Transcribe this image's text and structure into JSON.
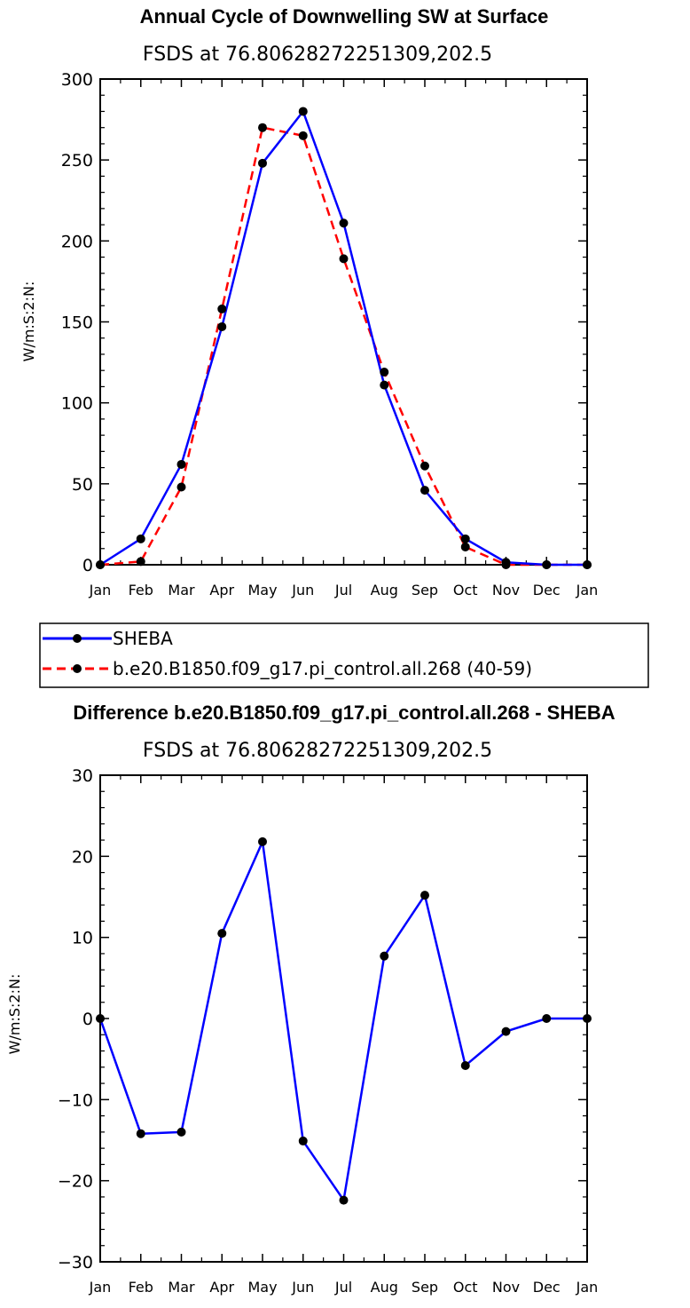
{
  "chart_data": [
    {
      "type": "line",
      "title": "Annual Cycle of Downwelling SW at Surface",
      "subtitle": "FSDS at 76.80628272251309,202.5",
      "ylabel": "W/m:S:2:N:",
      "xlabel": "",
      "categories": [
        "Jan",
        "Feb",
        "Mar",
        "Apr",
        "May",
        "Jun",
        "Jul",
        "Aug",
        "Sep",
        "Oct",
        "Nov",
        "Dec",
        "Jan"
      ],
      "ylim": [
        0,
        300
      ],
      "yticks": [
        0,
        50,
        100,
        150,
        200,
        250,
        300
      ],
      "grid": false,
      "legend_position": "bottom-left",
      "series": [
        {
          "name": "SHEBA",
          "color": "#0000ff",
          "dash": "solid",
          "values": [
            0,
            16,
            62,
            147,
            248,
            280,
            211,
            111,
            46,
            16,
            1.5,
            0,
            0
          ]
        },
        {
          "name": "b.e20.B1850.f09_g17.pi_control.all.268 (40-59)",
          "color": "#ff0000",
          "dash": "dashed",
          "values": [
            0,
            2,
            48,
            158,
            270,
            265,
            189,
            119,
            61,
            11,
            0,
            0,
            0
          ]
        }
      ]
    },
    {
      "type": "line",
      "title": "Difference b.e20.B1850.f09_g17.pi_control.all.268 - SHEBA",
      "subtitle": "FSDS at 76.80628272251309,202.5",
      "ylabel": "W/m:S:2:N:",
      "xlabel": "",
      "categories": [
        "Jan",
        "Feb",
        "Mar",
        "Apr",
        "May",
        "Jun",
        "Jul",
        "Aug",
        "Sep",
        "Oct",
        "Nov",
        "Dec",
        "Jan"
      ],
      "ylim": [
        -30,
        30
      ],
      "yticks": [
        -30,
        -20,
        -10,
        0,
        10,
        20,
        30
      ],
      "grid": false,
      "series": [
        {
          "color": "#0000ff",
          "dash": "solid",
          "values": [
            0,
            -14.2,
            -14,
            10.5,
            21.8,
            -15.1,
            -22.4,
            7.7,
            15.2,
            -5.8,
            -1.6,
            0,
            0
          ]
        }
      ]
    }
  ],
  "colors": {
    "marker": "#000000",
    "axis": "#000000"
  }
}
